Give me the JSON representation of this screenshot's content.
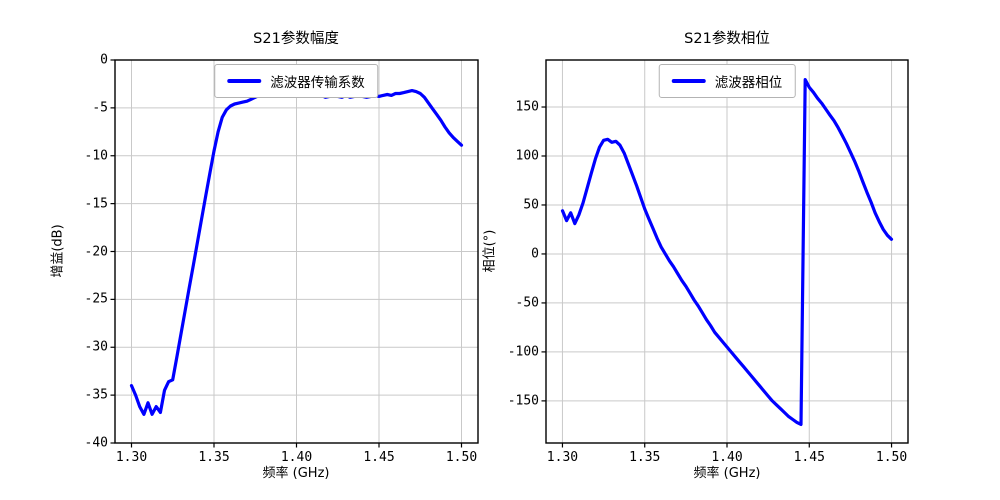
{
  "colors": {
    "line": "#0000ff",
    "grid": "#c9c9c9",
    "axis": "#000000",
    "background": "#ffffff",
    "legend_border": "#b3b3b3"
  },
  "chart_data": [
    {
      "type": "line",
      "title": "S21参数幅度",
      "xlabel": "频率 (GHz)",
      "ylabel": "增益(dB)",
      "legend": [
        "滤波器传输系数"
      ],
      "legend_position": "upper center",
      "grid": true,
      "color": "#0000ff",
      "xlim": [
        1.29,
        1.51
      ],
      "ylim": [
        -40,
        0
      ],
      "xticks": [
        1.3,
        1.35,
        1.4,
        1.45,
        1.5
      ],
      "xtick_labels": [
        "1.30",
        "1.35",
        "1.40",
        "1.45",
        "1.50"
      ],
      "yticks": [
        0,
        -5,
        -10,
        -15,
        -20,
        -25,
        -30,
        -35,
        -40
      ],
      "ytick_labels": [
        "0",
        "-5",
        "-10",
        "-15",
        "-20",
        "-25",
        "-30",
        "-35",
        "-40"
      ],
      "series": [
        {
          "name": "滤波器传输系数",
          "x": [
            1.3,
            1.3025,
            1.305,
            1.3075,
            1.31,
            1.3125,
            1.315,
            1.3175,
            1.32,
            1.3225,
            1.325,
            1.3275,
            1.33,
            1.3325,
            1.335,
            1.3375,
            1.34,
            1.3425,
            1.345,
            1.3475,
            1.35,
            1.3525,
            1.355,
            1.3575,
            1.36,
            1.3625,
            1.365,
            1.3675,
            1.37,
            1.3725,
            1.375,
            1.3775,
            1.38,
            1.3825,
            1.385,
            1.3875,
            1.39,
            1.3925,
            1.395,
            1.3975,
            1.4,
            1.4025,
            1.405,
            1.4075,
            1.41,
            1.4125,
            1.415,
            1.4175,
            1.42,
            1.4225,
            1.425,
            1.4275,
            1.43,
            1.4325,
            1.435,
            1.4375,
            1.44,
            1.4425,
            1.445,
            1.4475,
            1.45,
            1.4525,
            1.455,
            1.4575,
            1.46,
            1.4625,
            1.465,
            1.4675,
            1.47,
            1.4725,
            1.475,
            1.4775,
            1.48,
            1.4825,
            1.485,
            1.4875,
            1.49,
            1.4925,
            1.495,
            1.4975,
            1.5
          ],
          "y": [
            -34.0,
            -35.0,
            -36.2,
            -37.0,
            -35.8,
            -37.0,
            -36.2,
            -36.8,
            -34.5,
            -33.6,
            -33.4,
            -31.0,
            -28.6,
            -26.2,
            -23.8,
            -21.4,
            -19.0,
            -16.6,
            -14.2,
            -11.8,
            -9.5,
            -7.5,
            -6.0,
            -5.2,
            -4.8,
            -4.6,
            -4.5,
            -4.4,
            -4.3,
            -4.1,
            -3.9,
            -3.7,
            -3.5,
            -3.4,
            -3.3,
            -3.3,
            -3.4,
            -3.3,
            -3.5,
            -3.4,
            -3.5,
            -3.6,
            -3.7,
            -3.6,
            -3.8,
            -3.6,
            -3.7,
            -3.9,
            -3.8,
            -3.6,
            -3.8,
            -3.9,
            -3.7,
            -3.9,
            -3.8,
            -3.7,
            -3.8,
            -3.9,
            -3.8,
            -3.7,
            -3.8,
            -3.7,
            -3.6,
            -3.7,
            -3.5,
            -3.5,
            -3.4,
            -3.3,
            -3.2,
            -3.3,
            -3.5,
            -3.9,
            -4.5,
            -5.1,
            -5.7,
            -6.3,
            -7.0,
            -7.6,
            -8.1,
            -8.5,
            -8.9
          ]
        }
      ]
    },
    {
      "type": "line",
      "title": "S21参数相位",
      "xlabel": "频率 (GHz)",
      "ylabel": "相位(°)",
      "legend": [
        "滤波器相位"
      ],
      "legend_position": "upper center",
      "grid": true,
      "color": "#0000ff",
      "xlim": [
        1.29,
        1.51
      ],
      "ylim": [
        -193,
        198
      ],
      "xticks": [
        1.3,
        1.35,
        1.4,
        1.45,
        1.5
      ],
      "xtick_labels": [
        "1.30",
        "1.35",
        "1.40",
        "1.45",
        "1.50"
      ],
      "yticks": [
        150,
        100,
        50,
        0,
        -50,
        -100,
        -150
      ],
      "ytick_labels": [
        "150",
        "100",
        "50",
        "0",
        "-50",
        "-100",
        "-150"
      ],
      "series": [
        {
          "name": "滤波器相位",
          "x": [
            1.3,
            1.3025,
            1.305,
            1.3075,
            1.31,
            1.3125,
            1.315,
            1.3175,
            1.32,
            1.3225,
            1.325,
            1.3275,
            1.33,
            1.3325,
            1.335,
            1.3375,
            1.34,
            1.3425,
            1.345,
            1.3475,
            1.35,
            1.3525,
            1.355,
            1.3575,
            1.36,
            1.3625,
            1.365,
            1.3675,
            1.37,
            1.3725,
            1.375,
            1.3775,
            1.38,
            1.3825,
            1.385,
            1.3875,
            1.39,
            1.3925,
            1.395,
            1.3975,
            1.4,
            1.4025,
            1.405,
            1.4075,
            1.41,
            1.4125,
            1.415,
            1.4175,
            1.42,
            1.4225,
            1.425,
            1.4275,
            1.43,
            1.4325,
            1.435,
            1.4375,
            1.44,
            1.4425,
            1.445,
            1.4475,
            1.45,
            1.4525,
            1.455,
            1.4575,
            1.46,
            1.4625,
            1.465,
            1.4675,
            1.47,
            1.4725,
            1.475,
            1.4775,
            1.48,
            1.4825,
            1.485,
            1.4875,
            1.49,
            1.4925,
            1.495,
            1.4975,
            1.5
          ],
          "y": [
            44,
            34,
            42,
            31,
            40,
            52,
            67,
            82,
            97,
            109,
            116,
            117,
            114,
            115,
            111,
            103,
            92,
            81,
            70,
            58,
            46,
            36,
            26,
            16,
            7,
            0,
            -7,
            -13,
            -20,
            -27,
            -33,
            -40,
            -47,
            -53,
            -60,
            -67,
            -73,
            -80,
            -85,
            -90,
            -95,
            -100,
            -105,
            -110,
            -115,
            -120,
            -125,
            -130,
            -135,
            -140,
            -145,
            -150,
            -154,
            -158,
            -162,
            -166,
            -169,
            -172,
            -174,
            178,
            170,
            165,
            159,
            154,
            148,
            142,
            136,
            129,
            121,
            113,
            104,
            95,
            85,
            74,
            63,
            53,
            42,
            33,
            25,
            19,
            15
          ]
        }
      ]
    }
  ]
}
